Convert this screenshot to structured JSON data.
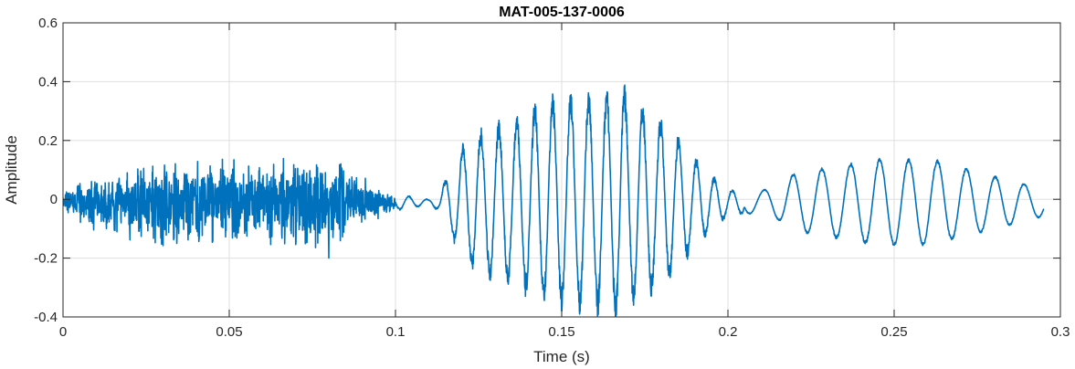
{
  "chart_data": {
    "type": "line",
    "title": "MAT-005-137-0006",
    "xlabel": "Time (s)",
    "ylabel": "Amplitude",
    "xlim": [
      0,
      0.3
    ],
    "ylim": [
      -0.4,
      0.6
    ],
    "xticks": [
      0,
      0.05,
      0.1,
      0.15,
      0.2,
      0.25,
      0.3
    ],
    "xtick_labels": [
      "0",
      "0.05",
      "0.1",
      "0.15",
      "0.2",
      "0.25",
      "0.3"
    ],
    "yticks": [
      -0.4,
      -0.2,
      0,
      0.2,
      0.4,
      0.6
    ],
    "ytick_labels": [
      "-0.4",
      "-0.2",
      "0",
      "0.2",
      "0.4",
      "0.6"
    ],
    "grid": true,
    "line_color": "#0072BD",
    "series": [
      {
        "x": [
          0,
          0.005,
          0.01,
          0.015,
          0.02,
          0.025,
          0.03,
          0.035,
          0.04,
          0.045,
          0.05,
          0.055,
          0.06,
          0.065,
          0.07,
          0.075,
          0.08,
          0.085,
          0.09,
          0.095,
          0.1,
          0.105,
          0.11,
          0.113,
          0.115,
          0.12,
          0.125,
          0.13,
          0.135,
          0.14,
          0.145,
          0.15,
          0.155,
          0.16,
          0.165,
          0.168,
          0.17,
          0.175,
          0.18,
          0.185,
          0.19,
          0.195,
          0.2,
          0.205,
          0.21,
          0.215,
          0.22,
          0.225,
          0.23,
          0.235,
          0.24,
          0.245,
          0.25,
          0.255,
          0.26,
          0.265,
          0.27,
          0.275,
          0.28,
          0.285,
          0.29,
          0.295
        ],
        "envelope": [
          0.04,
          0.08,
          0.1,
          0.12,
          0.14,
          0.16,
          0.2,
          0.15,
          0.18,
          0.16,
          0.15,
          0.17,
          0.16,
          0.18,
          0.19,
          0.2,
          0.22,
          0.15,
          0.1,
          0.07,
          0.03,
          0.02,
          0.01,
          0.03,
          0.08,
          0.2,
          0.26,
          0.28,
          0.3,
          0.33,
          0.37,
          0.38,
          0.38,
          0.39,
          0.4,
          0.42,
          0.38,
          0.34,
          0.3,
          0.24,
          0.16,
          0.1,
          0.05,
          0.04,
          0.04,
          0.06,
          0.1,
          0.11,
          0.12,
          0.13,
          0.14,
          0.15,
          0.15,
          0.15,
          0.15,
          0.14,
          0.12,
          0.11,
          0.09,
          0.08,
          0.06,
          0.05
        ],
        "offset": -0.01
      }
    ]
  }
}
